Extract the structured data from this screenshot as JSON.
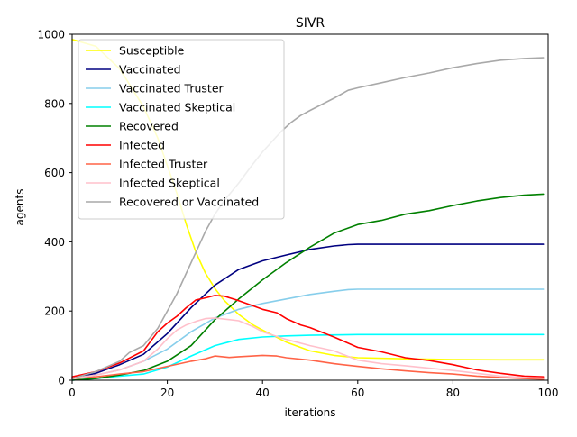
{
  "chart_data": {
    "type": "line",
    "title": "SIVR",
    "xlabel": "iterations",
    "ylabel": "agents",
    "xlim": [
      0,
      100
    ],
    "ylim": [
      0,
      1000
    ],
    "x_ticks": [
      "0",
      "20",
      "40",
      "60",
      "80",
      "100"
    ],
    "y_ticks": [
      "0",
      "200",
      "400",
      "600",
      "800",
      "1000"
    ],
    "grid": false,
    "legend_position": "top-left",
    "series": [
      {
        "name": "Susceptible",
        "color": "#ffff00",
        "points": [
          [
            0,
            985
          ],
          [
            5,
            965
          ],
          [
            10,
            900
          ],
          [
            15,
            790
          ],
          [
            18,
            700
          ],
          [
            20,
            620
          ],
          [
            22,
            540
          ],
          [
            24,
            450
          ],
          [
            26,
            370
          ],
          [
            28,
            310
          ],
          [
            30,
            265
          ],
          [
            32,
            230
          ],
          [
            35,
            190
          ],
          [
            38,
            160
          ],
          [
            40,
            145
          ],
          [
            45,
            110
          ],
          [
            50,
            85
          ],
          [
            55,
            72
          ],
          [
            60,
            65
          ],
          [
            70,
            62
          ],
          [
            80,
            60
          ],
          [
            90,
            59
          ],
          [
            99,
            59
          ]
        ]
      },
      {
        "name": "Vaccinated",
        "color": "#000080",
        "points": [
          [
            0,
            5
          ],
          [
            5,
            20
          ],
          [
            10,
            45
          ],
          [
            15,
            75
          ],
          [
            20,
            135
          ],
          [
            25,
            210
          ],
          [
            30,
            275
          ],
          [
            35,
            320
          ],
          [
            40,
            345
          ],
          [
            45,
            362
          ],
          [
            50,
            378
          ],
          [
            55,
            388
          ],
          [
            58,
            392
          ],
          [
            60,
            393
          ],
          [
            70,
            393
          ],
          [
            80,
            393
          ],
          [
            90,
            393
          ],
          [
            99,
            393
          ]
        ]
      },
      {
        "name": "Vaccinated Truster",
        "color": "#87ceeb",
        "points": [
          [
            0,
            5
          ],
          [
            5,
            15
          ],
          [
            10,
            30
          ],
          [
            15,
            55
          ],
          [
            20,
            90
          ],
          [
            25,
            140
          ],
          [
            30,
            180
          ],
          [
            35,
            205
          ],
          [
            40,
            222
          ],
          [
            45,
            235
          ],
          [
            50,
            248
          ],
          [
            55,
            257
          ],
          [
            58,
            262
          ],
          [
            60,
            263
          ],
          [
            70,
            263
          ],
          [
            80,
            263
          ],
          [
            90,
            263
          ],
          [
            99,
            263
          ]
        ]
      },
      {
        "name": "Vaccinated Skeptical",
        "color": "#00ffff",
        "points": [
          [
            0,
            0
          ],
          [
            5,
            5
          ],
          [
            10,
            12
          ],
          [
            15,
            18
          ],
          [
            20,
            38
          ],
          [
            25,
            70
          ],
          [
            30,
            100
          ],
          [
            35,
            118
          ],
          [
            40,
            125
          ],
          [
            45,
            128
          ],
          [
            50,
            130
          ],
          [
            55,
            131
          ],
          [
            60,
            132
          ],
          [
            70,
            132
          ],
          [
            80,
            132
          ],
          [
            90,
            132
          ],
          [
            99,
            132
          ]
        ]
      },
      {
        "name": "Recovered",
        "color": "#008000",
        "points": [
          [
            0,
            0
          ],
          [
            5,
            5
          ],
          [
            10,
            15
          ],
          [
            15,
            28
          ],
          [
            20,
            55
          ],
          [
            25,
            100
          ],
          [
            30,
            175
          ],
          [
            35,
            235
          ],
          [
            40,
            290
          ],
          [
            45,
            340
          ],
          [
            50,
            385
          ],
          [
            55,
            425
          ],
          [
            60,
            450
          ],
          [
            65,
            462
          ],
          [
            70,
            480
          ],
          [
            75,
            490
          ],
          [
            80,
            505
          ],
          [
            85,
            518
          ],
          [
            90,
            528
          ],
          [
            95,
            535
          ],
          [
            99,
            538
          ]
        ]
      },
      {
        "name": "Infected",
        "color": "#ff0000",
        "points": [
          [
            0,
            10
          ],
          [
            5,
            25
          ],
          [
            10,
            50
          ],
          [
            15,
            85
          ],
          [
            18,
            140
          ],
          [
            20,
            165
          ],
          [
            22,
            185
          ],
          [
            24,
            210
          ],
          [
            26,
            232
          ],
          [
            28,
            238
          ],
          [
            30,
            245
          ],
          [
            32,
            243
          ],
          [
            35,
            230
          ],
          [
            38,
            215
          ],
          [
            40,
            205
          ],
          [
            43,
            195
          ],
          [
            45,
            178
          ],
          [
            48,
            160
          ],
          [
            50,
            152
          ],
          [
            55,
            125
          ],
          [
            60,
            95
          ],
          [
            65,
            82
          ],
          [
            70,
            65
          ],
          [
            75,
            57
          ],
          [
            80,
            45
          ],
          [
            85,
            30
          ],
          [
            90,
            20
          ],
          [
            95,
            12
          ],
          [
            99,
            10
          ]
        ]
      },
      {
        "name": "Infected Truster",
        "color": "#ff6347",
        "points": [
          [
            0,
            5
          ],
          [
            5,
            10
          ],
          [
            10,
            18
          ],
          [
            15,
            25
          ],
          [
            20,
            40
          ],
          [
            25,
            55
          ],
          [
            28,
            62
          ],
          [
            30,
            70
          ],
          [
            33,
            66
          ],
          [
            35,
            68
          ],
          [
            38,
            70
          ],
          [
            40,
            72
          ],
          [
            43,
            70
          ],
          [
            45,
            65
          ],
          [
            50,
            58
          ],
          [
            55,
            48
          ],
          [
            60,
            40
          ],
          [
            65,
            33
          ],
          [
            70,
            27
          ],
          [
            75,
            22
          ],
          [
            80,
            18
          ],
          [
            85,
            12
          ],
          [
            90,
            8
          ],
          [
            95,
            5
          ],
          [
            99,
            3
          ]
        ]
      },
      {
        "name": "Infected Skeptical",
        "color": "#ffc0cb",
        "points": [
          [
            0,
            5
          ],
          [
            5,
            15
          ],
          [
            10,
            30
          ],
          [
            15,
            55
          ],
          [
            18,
            90
          ],
          [
            20,
            120
          ],
          [
            22,
            145
          ],
          [
            24,
            160
          ],
          [
            26,
            170
          ],
          [
            28,
            178
          ],
          [
            30,
            180
          ],
          [
            35,
            172
          ],
          [
            38,
            155
          ],
          [
            40,
            140
          ],
          [
            45,
            118
          ],
          [
            50,
            100
          ],
          [
            55,
            85
          ],
          [
            60,
            58
          ],
          [
            65,
            48
          ],
          [
            70,
            42
          ],
          [
            75,
            35
          ],
          [
            80,
            28
          ],
          [
            85,
            20
          ],
          [
            90,
            12
          ],
          [
            95,
            8
          ],
          [
            99,
            6
          ]
        ]
      },
      {
        "name": "Recovered or Vaccinated",
        "color": "#a9a9a9",
        "points": [
          [
            0,
            5
          ],
          [
            5,
            25
          ],
          [
            10,
            55
          ],
          [
            12,
            80
          ],
          [
            15,
            100
          ],
          [
            18,
            150
          ],
          [
            20,
            200
          ],
          [
            22,
            250
          ],
          [
            24,
            310
          ],
          [
            26,
            370
          ],
          [
            28,
            430
          ],
          [
            30,
            480
          ],
          [
            32,
            520
          ],
          [
            35,
            570
          ],
          [
            38,
            625
          ],
          [
            40,
            660
          ],
          [
            42,
            690
          ],
          [
            44,
            720
          ],
          [
            46,
            745
          ],
          [
            48,
            765
          ],
          [
            50,
            780
          ],
          [
            55,
            815
          ],
          [
            58,
            838
          ],
          [
            60,
            845
          ],
          [
            65,
            860
          ],
          [
            70,
            875
          ],
          [
            75,
            888
          ],
          [
            80,
            903
          ],
          [
            85,
            915
          ],
          [
            90,
            925
          ],
          [
            95,
            930
          ],
          [
            99,
            932
          ]
        ]
      }
    ]
  }
}
